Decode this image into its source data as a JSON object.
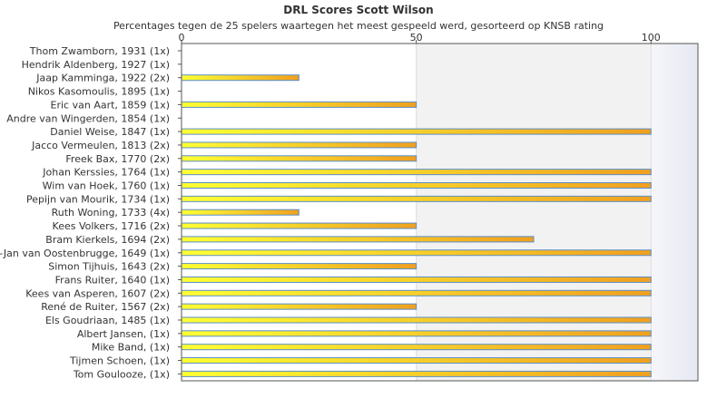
{
  "chart_data": {
    "type": "bar",
    "orientation": "horizontal",
    "title": "DRL Scores Scott Wilson",
    "subtitle": "Percentages tegen de 25 spelers waartegen het meest gespeeld werd, gesorteerd op KNSB rating",
    "xlim": [
      0,
      110
    ],
    "xticks": [
      0,
      50,
      100
    ],
    "grid": true,
    "colors": {
      "bar_start": "#ffff33",
      "bar_end": "#f0a020",
      "bar_border": "#5b8fc7",
      "band": "#f2f2f2"
    },
    "categories": [
      "Thom Zwamborn, 1931 (1x)",
      "Hendrik Aldenberg, 1927 (1x)",
      "Jaap Kamminga, 1922 (2x)",
      "Nikos Kasomoulis, 1895 (1x)",
      "Eric van Aart, 1859 (1x)",
      "Andre van Wingerden, 1854 (1x)",
      "Daniel Weise, 1847 (1x)",
      "Jacco Vermeulen, 1813 (2x)",
      "Freek Bax, 1770 (2x)",
      "Johan Kerssies, 1764 (1x)",
      "Wim van Hoek, 1760 (1x)",
      "Pepijn van Mourik, 1734 (1x)",
      "Ruth Woning, 1733 (4x)",
      "Kees Volkers, 1716 (2x)",
      "Bram Kierkels, 1694 (2x)",
      "t-Jan van Oostenbrugge, 1649 (1x)",
      "Simon Tijhuis, 1643 (2x)",
      "Frans Ruiter, 1640 (1x)",
      "Kees van Asperen, 1607 (2x)",
      "René de Ruiter, 1567 (2x)",
      "Els Goudriaan, 1485 (1x)",
      "Albert Jansen,  (1x)",
      "Mike Band,  (1x)",
      "Tijmen Schoen,  (1x)",
      "Tom Goulooze,  (1x)"
    ],
    "values": [
      0,
      0,
      25,
      0,
      50,
      0,
      100,
      50,
      50,
      100,
      100,
      100,
      25,
      50,
      75,
      100,
      50,
      100,
      100,
      50,
      100,
      100,
      100,
      100,
      100
    ]
  }
}
